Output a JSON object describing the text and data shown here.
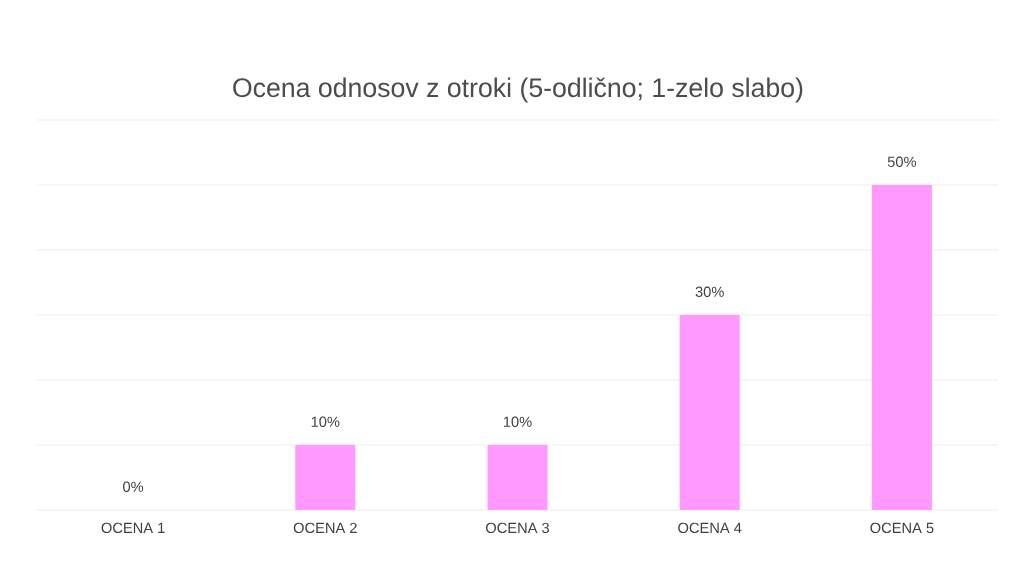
{
  "chart_data": {
    "type": "bar",
    "title": "Ocena odnosov z otroki (5-odlično; 1-zelo slabo)",
    "categories": [
      "OCENA 1",
      "OCENA 2",
      "OCENA 3",
      "OCENA 4",
      "OCENA 5"
    ],
    "values": [
      0,
      10,
      10,
      30,
      50
    ],
    "value_labels": [
      "0%",
      "10%",
      "10%",
      "30%",
      "50%"
    ],
    "color": "#ff99ff",
    "ylim": [
      0,
      60
    ],
    "yticks": [
      {
        "value": 0,
        "label": null
      },
      {
        "value": 10,
        "label": null
      },
      {
        "value": 20,
        "label": null
      },
      {
        "value": 30,
        "label": null
      },
      {
        "value": 40,
        "label": null
      },
      {
        "value": 50,
        "label": null
      },
      {
        "value": 60,
        "label": null
      }
    ],
    "grid": "y",
    "tick_labels": "x"
  }
}
